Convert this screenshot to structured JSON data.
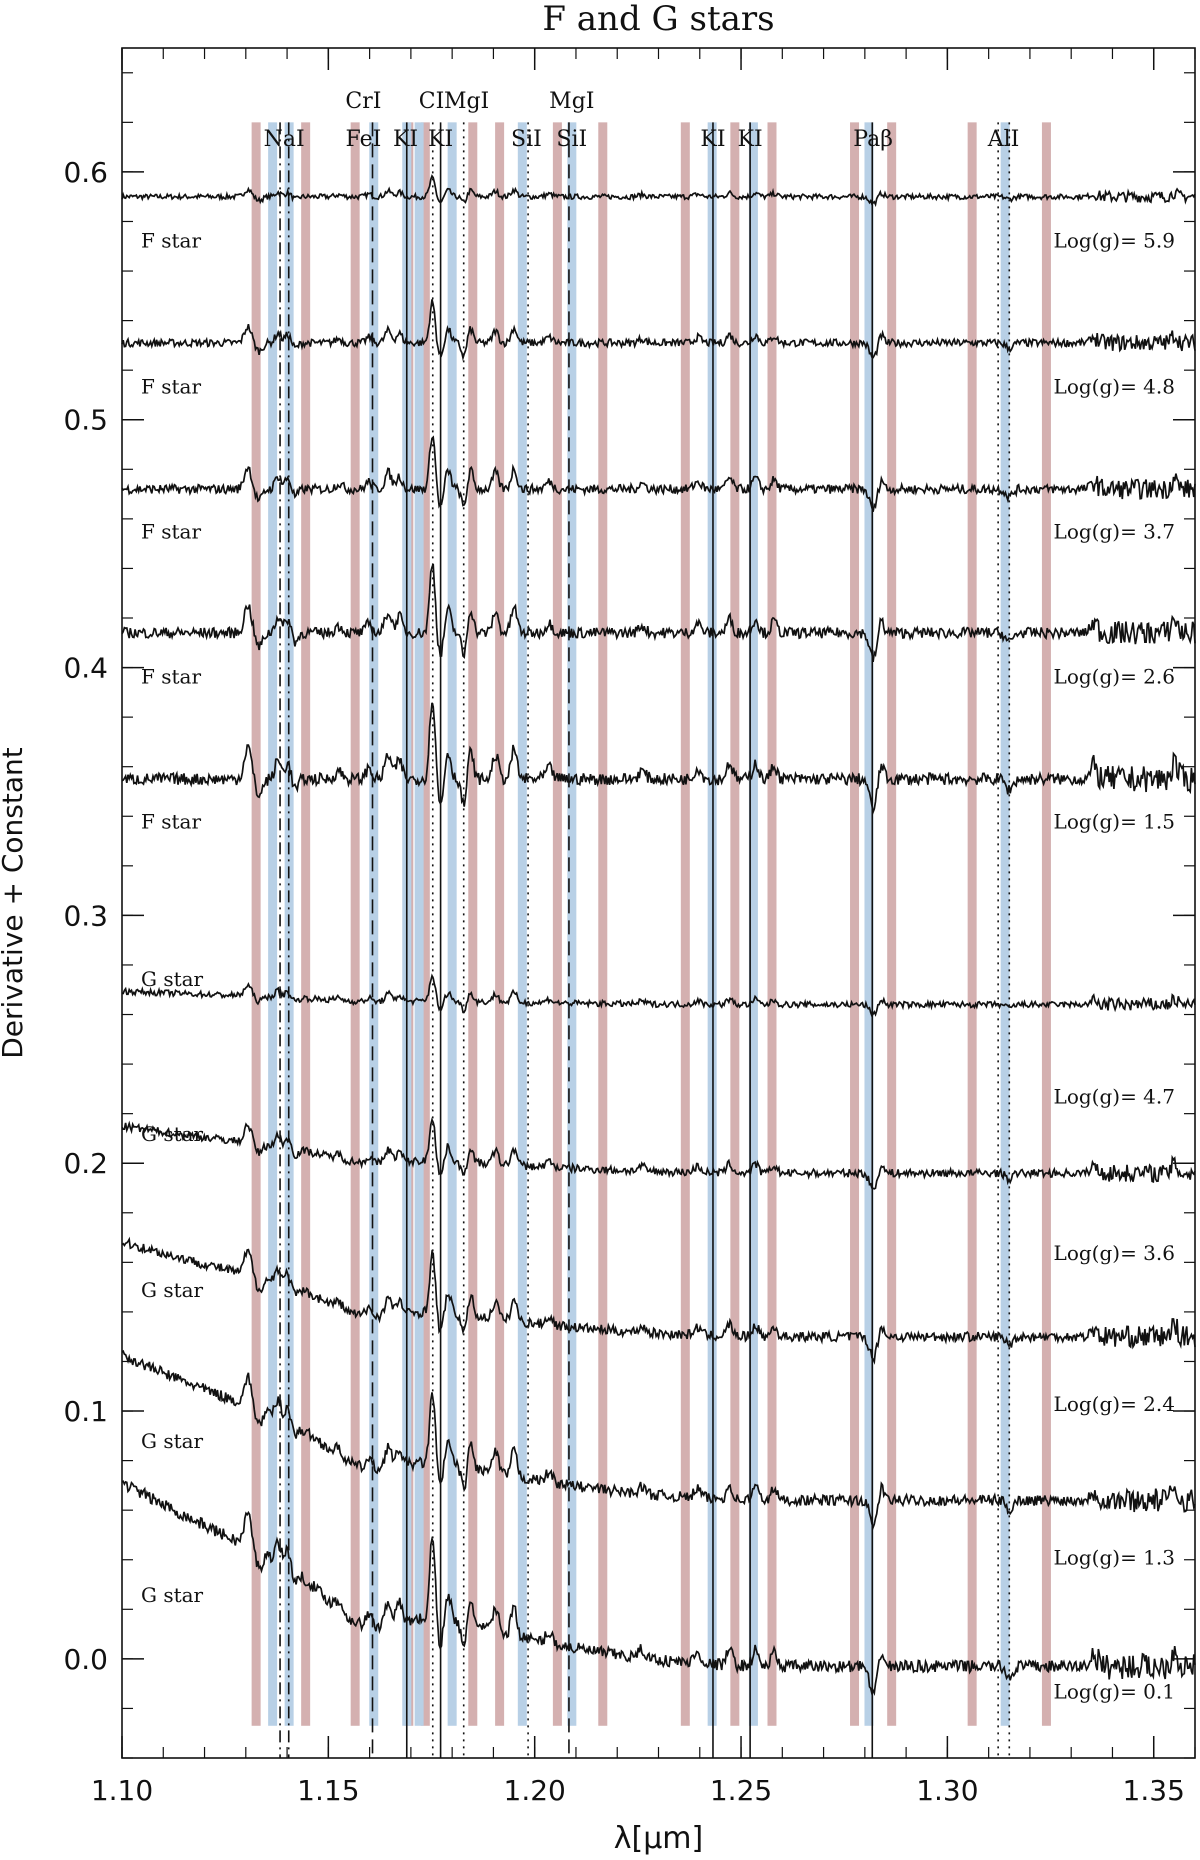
{
  "chart_data": {
    "type": "line",
    "title": "F and G stars",
    "xlabel": "λ[μm]",
    "ylabel": "Derivative + Constant",
    "xlim": [
      1.1,
      1.36
    ],
    "ylim": [
      -0.04,
      0.65
    ],
    "x_ticks": [
      {
        "value": 1.1,
        "label": "1.10"
      },
      {
        "value": 1.15,
        "label": "1.15"
      },
      {
        "value": 1.2,
        "label": "1.20"
      },
      {
        "value": 1.25,
        "label": "1.25"
      },
      {
        "value": 1.3,
        "label": "1.30"
      },
      {
        "value": 1.35,
        "label": "1.35"
      }
    ],
    "y_ticks": [
      {
        "value": 0.0,
        "label": "0.0"
      },
      {
        "value": 0.1,
        "label": "0.1"
      },
      {
        "value": 0.2,
        "label": "0.2"
      },
      {
        "value": 0.3,
        "label": "0.3"
      },
      {
        "value": 0.4,
        "label": "0.4"
      },
      {
        "value": 0.5,
        "label": "0.5"
      },
      {
        "value": 0.6,
        "label": "0.6"
      }
    ],
    "grid": false,
    "shaded_bands": {
      "colors": {
        "red": "#d4b0b0",
        "blue": "#b8d0e6"
      },
      "red": [
        1.1325,
        1.1445,
        1.1565,
        1.1695,
        1.1735,
        1.185,
        1.1915,
        1.2055,
        1.2165,
        1.2365,
        1.2485,
        1.2575,
        1.2775,
        1.2865,
        1.306,
        1.324
      ],
      "blue": [
        1.1365,
        1.1405,
        1.161,
        1.169,
        1.172,
        1.18,
        1.197,
        1.209,
        1.243,
        1.253,
        1.281,
        1.314
      ]
    },
    "lines": [
      {
        "label": "NaI",
        "x": [
          1.1383,
          1.1404
        ],
        "style": "dashdot"
      },
      {
        "label": "FeI",
        "x": [
          1.1607
        ],
        "style": "dashed"
      },
      {
        "label": "KI",
        "x": [
          1.169
        ],
        "style": "solid"
      },
      {
        "label": "CI",
        "x": [
          1.1753
        ],
        "style": "dotted"
      },
      {
        "label": "KI",
        "x": [
          1.1772
        ],
        "style": "solid"
      },
      {
        "label": "MgI",
        "x": [
          1.1828
        ],
        "style": "dotted"
      },
      {
        "label": "SiI",
        "x": [
          1.1984
        ],
        "style": "dotted"
      },
      {
        "label": "SiI",
        "x": [
          1.2083
        ],
        "style": "dashed"
      },
      {
        "label": "KI",
        "x": [
          1.2432
        ],
        "style": "solid"
      },
      {
        "label": "KI",
        "x": [
          1.2522
        ],
        "style": "solid"
      },
      {
        "label": "Paβ",
        "x": [
          1.2818
        ],
        "style": "solid"
      },
      {
        "label": "AlI",
        "x": [
          1.3123,
          1.315
        ],
        "style": "dotted"
      }
    ],
    "line_label_rows": {
      "upper": [
        {
          "text": "CrI",
          "x": 1.1585
        },
        {
          "text": "CI",
          "x": 1.175
        },
        {
          "text": "MgI",
          "x": 1.1835
        },
        {
          "text": "MgI",
          "x": 1.209
        }
      ],
      "lower": [
        {
          "text": "NaI",
          "x": 1.1393
        },
        {
          "text": "FeI",
          "x": 1.1585
        },
        {
          "text": "KI",
          "x": 1.1687
        },
        {
          "text": "KI",
          "x": 1.1772
        },
        {
          "text": "SiI",
          "x": 1.198
        },
        {
          "text": "SiI",
          "x": 1.209
        },
        {
          "text": "KI",
          "x": 1.2432
        },
        {
          "text": "KI",
          "x": 1.2522
        },
        {
          "text": "Paβ",
          "x": 1.282
        },
        {
          "text": "AlI",
          "x": 1.3136
        }
      ]
    },
    "series": [
      {
        "name": "F star",
        "logg": "Log(g)= 5.9",
        "offset": 0.59,
        "strength": 0.25,
        "slope": 0.0,
        "name_y": 0.5695,
        "logg_y": 0.5695
      },
      {
        "name": "F star",
        "logg": "Log(g)= 4.8",
        "offset": 0.531,
        "strength": 0.55,
        "slope": 0.0,
        "name_y": 0.5105,
        "logg_y": 0.5105
      },
      {
        "name": "F star",
        "logg": "Log(g)= 3.7",
        "offset": 0.472,
        "strength": 0.75,
        "slope": 0.0,
        "name_y": 0.452,
        "logg_y": 0.452
      },
      {
        "name": "F star",
        "logg": "Log(g)= 2.6",
        "offset": 0.414,
        "strength": 0.95,
        "slope": 0.0,
        "name_y": 0.3935,
        "logg_y": 0.3935
      },
      {
        "name": "F star",
        "logg": "Log(g)= 1.5",
        "offset": 0.355,
        "strength": 1.1,
        "slope": 0.0,
        "name_y": 0.335,
        "logg_y": 0.335
      },
      {
        "name": "G star",
        "logg": "Log(g)= 4.7",
        "offset": 0.264,
        "strength": 0.35,
        "slope": 0.012,
        "name_y": 0.2715,
        "logg_y": 0.224
      },
      {
        "name": "G star",
        "logg": "Log(g)= 3.6",
        "offset": 0.196,
        "strength": 0.6,
        "slope": 0.042,
        "name_y": 0.209,
        "logg_y": 0.161
      },
      {
        "name": "G star",
        "logg": "Log(g)= 2.4",
        "offset": 0.13,
        "strength": 0.8,
        "slope": 0.085,
        "name_y": 0.146,
        "logg_y": 0.1
      },
      {
        "name": "G star",
        "logg": "Log(g)= 1.3",
        "offset": 0.064,
        "strength": 0.95,
        "slope": 0.13,
        "name_y": 0.085,
        "logg_y": 0.038
      },
      {
        "name": "G star",
        "logg": "Log(g)= 0.1",
        "offset": -0.003,
        "strength": 1.1,
        "slope": 0.165,
        "name_y": 0.023,
        "logg_y": -0.016
      }
    ]
  }
}
